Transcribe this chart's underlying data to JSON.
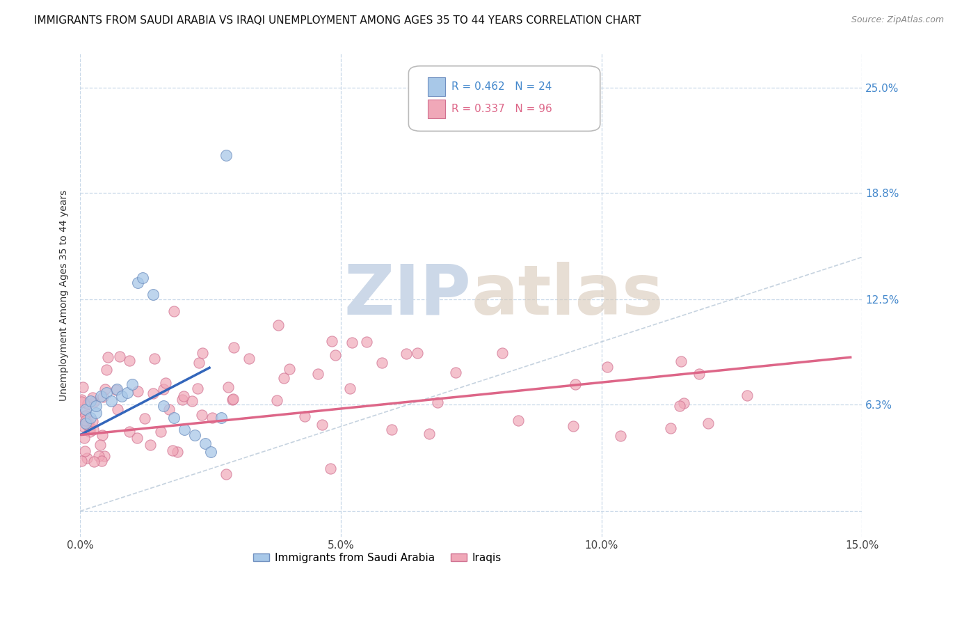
{
  "title": "IMMIGRANTS FROM SAUDI ARABIA VS IRAQI UNEMPLOYMENT AMONG AGES 35 TO 44 YEARS CORRELATION CHART",
  "source": "Source: ZipAtlas.com",
  "ylabel": "Unemployment Among Ages 35 to 44 years",
  "xlim": [
    0.0,
    0.15
  ],
  "ylim": [
    -0.015,
    0.27
  ],
  "xticks": [
    0.0,
    0.05,
    0.1,
    0.15
  ],
  "xtick_labels": [
    "0.0%",
    "5.0%",
    "10.0%",
    "15.0%"
  ],
  "yticks": [
    0.0,
    0.063,
    0.125,
    0.188,
    0.25
  ],
  "ytick_labels": [
    "",
    "6.3%",
    "12.5%",
    "18.8%",
    "25.0%"
  ],
  "background_color": "#ffffff",
  "grid_color": "#c8d8e8",
  "title_fontsize": 11,
  "axis_label_fontsize": 10,
  "tick_fontsize": 11,
  "saudi_color": "#a8c8e8",
  "iraqi_color": "#f0a8b8",
  "saudi_edge_color": "#7090c0",
  "iraqi_edge_color": "#d07090",
  "saudi_trend_color": "#3366bb",
  "iraqi_trend_color": "#dd6688",
  "diagonal_color": "#b8c8d8",
  "R_saudi": 0.462,
  "N_saudi": 24,
  "R_iraqi": 0.337,
  "N_iraqi": 96,
  "watermark_color": "#ccd8e8",
  "right_tick_color": "#4488cc",
  "saudi_legend_text_color": "#4488cc",
  "iraqi_legend_text_color": "#dd6688"
}
